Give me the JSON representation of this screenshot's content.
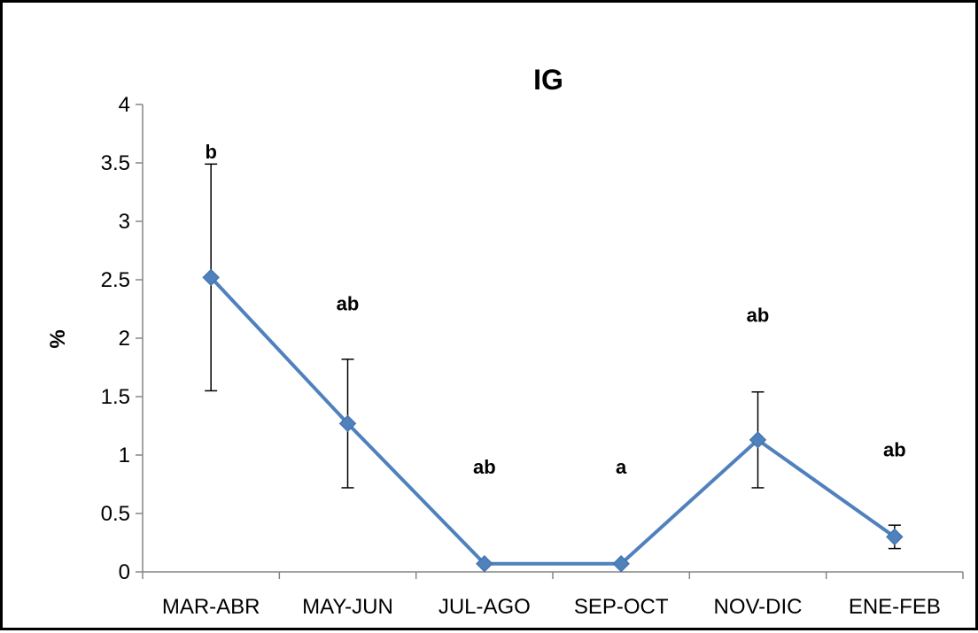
{
  "chart_data": {
    "type": "line",
    "title": "IG",
    "xlabel": "",
    "ylabel": "%",
    "ylim": [
      0,
      4
    ],
    "yticks": [
      "0",
      "0.5",
      "1",
      "1.5",
      "2",
      "2.5",
      "3",
      "3.5",
      "4"
    ],
    "categories": [
      "MAR-ABR",
      "MAY-JUN",
      "JUL-AGO",
      "SEP-OCT",
      "NOV-DIC",
      "ENE-FEB"
    ],
    "series": [
      {
        "values": [
          2.52,
          1.27,
          0.07,
          0.07,
          1.13,
          0.3
        ],
        "error_low": [
          1.55,
          0.72,
          0.07,
          0.07,
          0.72,
          0.2
        ],
        "error_high": [
          3.49,
          1.82,
          0.07,
          0.07,
          1.54,
          0.4
        ],
        "color": "#4f81bd",
        "marker": "diamond"
      }
    ],
    "annotations": [
      "b",
      "ab",
      "ab",
      "a",
      "ab",
      "ab"
    ],
    "annotation_y": [
      3.6,
      2.3,
      0.9,
      0.9,
      2.2,
      1.05
    ],
    "grid": false,
    "legend": "none"
  }
}
